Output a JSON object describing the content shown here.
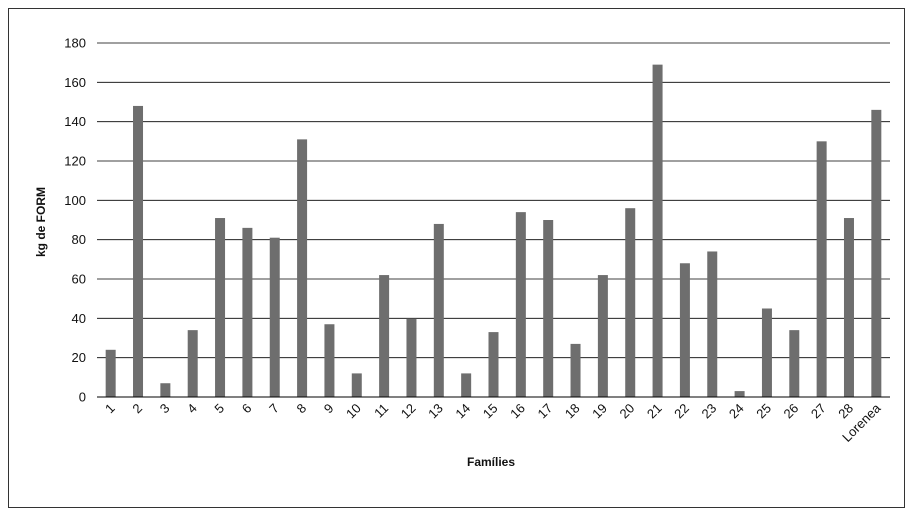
{
  "chart_data": {
    "type": "bar",
    "title": "",
    "xlabel": "Famílies",
    "ylabel": "kg de FORM",
    "ylim": [
      0,
      180
    ],
    "yticks": [
      0,
      20,
      40,
      60,
      80,
      100,
      120,
      140,
      160,
      180
    ],
    "grid": true,
    "legend": "none",
    "bar_color": "#6e6e6e",
    "categories": [
      "1",
      "2",
      "3",
      "4",
      "5",
      "6",
      "7",
      "8",
      "9",
      "10",
      "11",
      "12",
      "13",
      "14",
      "15",
      "16",
      "17",
      "18",
      "19",
      "20",
      "21",
      "22",
      "23",
      "24",
      "25",
      "26",
      "27",
      "28",
      "Lorenea"
    ],
    "values": [
      24,
      148,
      7,
      34,
      91,
      86,
      81,
      131,
      37,
      12,
      62,
      40,
      88,
      12,
      33,
      94,
      90,
      27,
      62,
      96,
      169,
      68,
      74,
      3,
      45,
      34,
      130,
      91,
      146
    ]
  }
}
